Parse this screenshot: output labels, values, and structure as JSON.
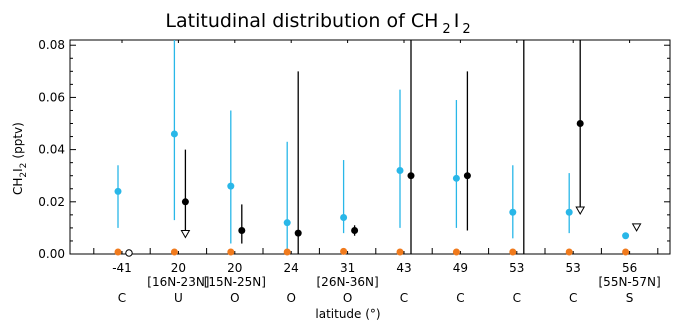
{
  "chart_data": {
    "type": "scatter",
    "title": "Latitudinal distribution of CH",
    "title_sub1": "2",
    "title_sub2": "I",
    "title_sub3": "2",
    "ylabel_main": "CH",
    "ylabel_sub1": "2",
    "ylabel_mid": "I",
    "ylabel_sub2": "2",
    "ylabel_unit": "(pptv)",
    "xlabel": "latitude (°)",
    "ylim": [
      0,
      0.082
    ],
    "yticks": [
      "0.00",
      "0.02",
      "0.04",
      "0.06",
      "0.08"
    ],
    "ytick_values": [
      0,
      0.02,
      0.04,
      0.06,
      0.08
    ],
    "grid": false,
    "categories": [
      {
        "lat": "-41",
        "region": "",
        "class": "C"
      },
      {
        "lat": "20",
        "region": "[16N-23N]",
        "class": "U"
      },
      {
        "lat": "20",
        "region": "[15N-25N]",
        "class": "O"
      },
      {
        "lat": "24",
        "region": "",
        "class": "O"
      },
      {
        "lat": "31",
        "region": "[26N-36N]",
        "class": "O"
      },
      {
        "lat": "43",
        "region": "",
        "class": "C"
      },
      {
        "lat": "49",
        "region": "",
        "class": "C"
      },
      {
        "lat": "53",
        "region": "",
        "class": "C"
      },
      {
        "lat": "53",
        "region": "",
        "class": "C"
      },
      {
        "lat": "56",
        "region": "[55N-57N]",
        "class": "S"
      }
    ],
    "series": [
      {
        "color": "#29b7e8",
        "points": [
          {
            "i": 0,
            "y": 0.024,
            "lo": 0.01,
            "hi": 0.034
          },
          {
            "i": 1,
            "y": 0.046,
            "lo": 0.013,
            "hi": 0.082
          },
          {
            "i": 2,
            "y": 0.026,
            "lo": 0.004,
            "hi": 0.055
          },
          {
            "i": 3,
            "y": 0.012,
            "lo": 0.0,
            "hi": 0.043
          },
          {
            "i": 4,
            "y": 0.014,
            "lo": 0.008,
            "hi": 0.036
          },
          {
            "i": 5,
            "y": 0.032,
            "lo": 0.01,
            "hi": 0.063
          },
          {
            "i": 6,
            "y": 0.029,
            "lo": 0.01,
            "hi": 0.059
          },
          {
            "i": 7,
            "y": 0.016,
            "lo": 0.006,
            "hi": 0.034
          },
          {
            "i": 8,
            "y": 0.016,
            "lo": 0.008,
            "hi": 0.031
          },
          {
            "i": 9,
            "y": 0.007,
            "lo": null,
            "hi": null
          }
        ]
      },
      {
        "color": "#000000",
        "points": [
          {
            "i": 0,
            "y": 0.0,
            "lo": null,
            "hi": null,
            "open": true
          },
          {
            "i": 1,
            "y": 0.02,
            "lo": 0.009,
            "hi": 0.04,
            "arrow": true
          },
          {
            "i": 2,
            "y": 0.009,
            "lo": 0.004,
            "hi": 0.019
          },
          {
            "i": 3,
            "y": 0.008,
            "lo": 0.0,
            "hi": 0.07
          },
          {
            "i": 4,
            "y": 0.009,
            "lo": 0.007,
            "hi": 0.011
          },
          {
            "i": 5,
            "y": 0.03,
            "lo": 0.0,
            "hi": 0.082
          },
          {
            "i": 6,
            "y": 0.03,
            "lo": 0.009,
            "hi": 0.07
          },
          {
            "i": 7,
            "y": null,
            "lo": 0.0,
            "hi": 0.082
          },
          {
            "i": 8,
            "y": 0.05,
            "lo": 0.018,
            "hi": 0.082,
            "arrow": true
          },
          {
            "i": 9,
            "y": null,
            "lo": null,
            "hi": null,
            "marker_only_arrow": 0.01
          }
        ]
      },
      {
        "color": "#f07a1c",
        "points": [
          {
            "i": 0,
            "y": 0.0
          },
          {
            "i": 1,
            "y": 0.0
          },
          {
            "i": 2,
            "y": 0.0
          },
          {
            "i": 3,
            "y": 0.0
          },
          {
            "i": 4,
            "y": 0.001
          },
          {
            "i": 5,
            "y": 0.0
          },
          {
            "i": 6,
            "y": 0.0
          },
          {
            "i": 7,
            "y": 0.0
          },
          {
            "i": 8,
            "y": 0.0
          },
          {
            "i": 9,
            "y": 0.0
          }
        ]
      }
    ]
  }
}
